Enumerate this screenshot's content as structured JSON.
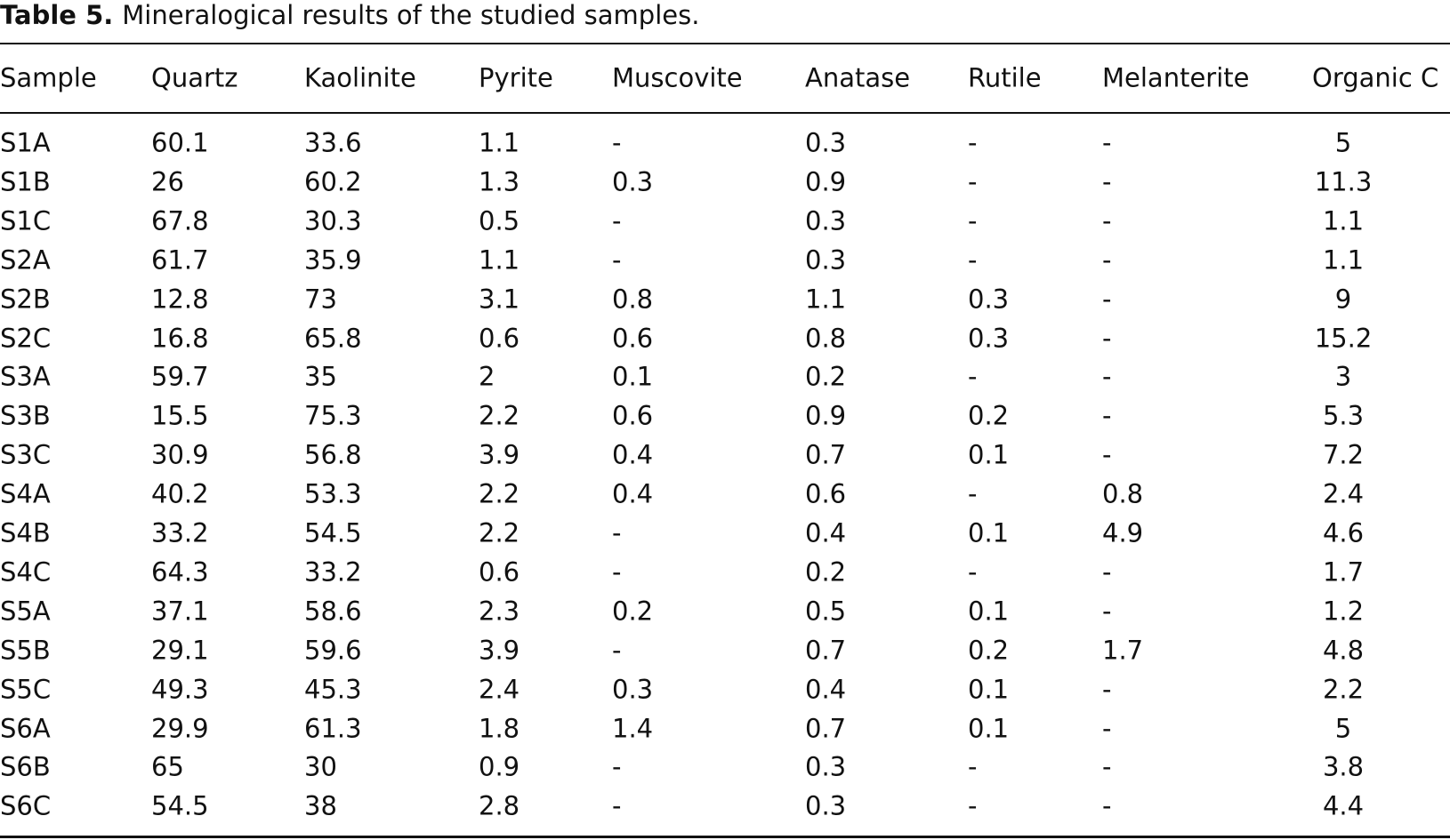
{
  "caption": {
    "label": "Table 5.",
    "text": "Mineralogical results of the studied samples."
  },
  "table": {
    "columns": [
      "Sample",
      "Quartz",
      "Kaolinite",
      "Pyrite",
      "Muscovite",
      "Anatase",
      "Rutile",
      "Melanterite",
      "Organic C"
    ],
    "rows": [
      [
        "S1A",
        "60.1",
        "33.6",
        "1.1",
        "-",
        "0.3",
        "-",
        "-",
        "5"
      ],
      [
        "S1B",
        "26",
        "60.2",
        "1.3",
        "0.3",
        "0.9",
        "-",
        "-",
        "11.3"
      ],
      [
        "S1C",
        "67.8",
        "30.3",
        "0.5",
        "-",
        "0.3",
        "-",
        "-",
        "1.1"
      ],
      [
        "S2A",
        "61.7",
        "35.9",
        "1.1",
        "-",
        "0.3",
        "-",
        "-",
        "1.1"
      ],
      [
        "S2B",
        "12.8",
        "73",
        "3.1",
        "0.8",
        "1.1",
        "0.3",
        "-",
        "9"
      ],
      [
        "S2C",
        "16.8",
        "65.8",
        "0.6",
        "0.6",
        "0.8",
        "0.3",
        "-",
        "15.2"
      ],
      [
        "S3A",
        "59.7",
        "35",
        "2",
        "0.1",
        "0.2",
        "-",
        "-",
        "3"
      ],
      [
        "S3B",
        "15.5",
        "75.3",
        "2.2",
        "0.6",
        "0.9",
        "0.2",
        "-",
        "5.3"
      ],
      [
        "S3C",
        "30.9",
        "56.8",
        "3.9",
        "0.4",
        "0.7",
        "0.1",
        "-",
        "7.2"
      ],
      [
        "S4A",
        "40.2",
        "53.3",
        "2.2",
        "0.4",
        "0.6",
        "-",
        "0.8",
        "2.4"
      ],
      [
        "S4B",
        "33.2",
        "54.5",
        "2.2",
        "-",
        "0.4",
        "0.1",
        "4.9",
        "4.6"
      ],
      [
        "S4C",
        "64.3",
        "33.2",
        "0.6",
        "-",
        "0.2",
        "-",
        "-",
        "1.7"
      ],
      [
        "S5A",
        "37.1",
        "58.6",
        "2.3",
        "0.2",
        "0.5",
        "0.1",
        "-",
        "1.2"
      ],
      [
        "S5B",
        "29.1",
        "59.6",
        "3.9",
        "-",
        "0.7",
        "0.2",
        "1.7",
        "4.8"
      ],
      [
        "S5C",
        "49.3",
        "45.3",
        "2.4",
        "0.3",
        "0.4",
        "0.1",
        "-",
        "2.2"
      ],
      [
        "S6A",
        "29.9",
        "61.3",
        "1.8",
        "1.4",
        "0.7",
        "0.1",
        "-",
        "5"
      ],
      [
        "S6B",
        "65",
        "30",
        "0.9",
        "-",
        "0.3",
        "-",
        "-",
        "3.8"
      ],
      [
        "S6C",
        "54.5",
        "38",
        "2.8",
        "-",
        "0.3",
        "-",
        "-",
        "4.4"
      ]
    ]
  }
}
